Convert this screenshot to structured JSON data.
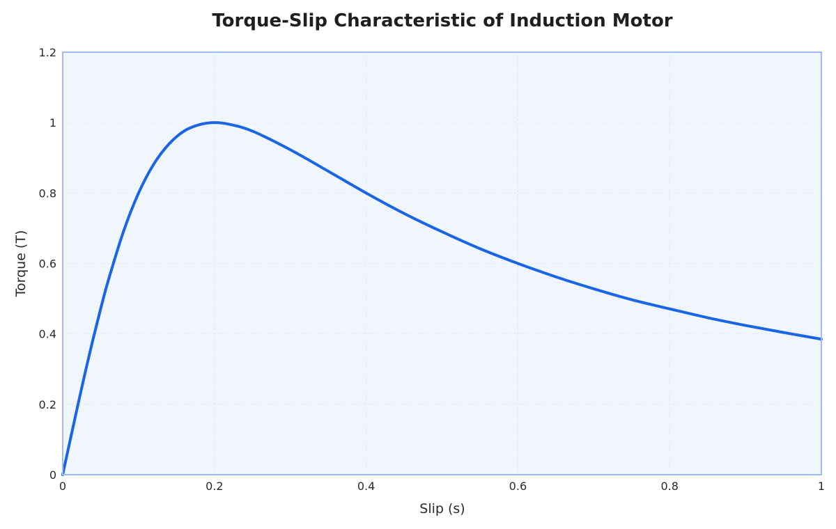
{
  "chart_data": {
    "type": "line",
    "title": "Torque-Slip Characteristic of Induction Motor",
    "xlabel": "Slip (s)",
    "ylabel": "Torque (T)",
    "xlim": [
      0,
      1
    ],
    "ylim": [
      0,
      1.2
    ],
    "xticks": [
      "0",
      "0.2",
      "0.4",
      "0.6",
      "0.8",
      "1"
    ],
    "yticks": [
      "0",
      "0.2",
      "0.4",
      "0.6",
      "0.8",
      "1",
      "1.2"
    ],
    "grid": true,
    "legend": "none",
    "colors": {
      "line": "#1a64e6",
      "plot_background": "#f1f6fd",
      "plot_border": "#9dbcf5",
      "grid": "#dfe8f5"
    },
    "series": [
      {
        "x": [
          0,
          0.01,
          0.02,
          0.03,
          0.04,
          0.05,
          0.06,
          0.08,
          0.1,
          0.12,
          0.14,
          0.16,
          0.18,
          0.2,
          0.22,
          0.25,
          0.3,
          0.35,
          0.4,
          0.45,
          0.5,
          0.55,
          0.6,
          0.65,
          0.7,
          0.75,
          0.8,
          0.85,
          0.9,
          0.95,
          1.0
        ],
        "values": [
          0,
          0.0998,
          0.198,
          0.294,
          0.385,
          0.471,
          0.551,
          0.69,
          0.8,
          0.882,
          0.939,
          0.976,
          0.994,
          1.0,
          0.995,
          0.976,
          0.923,
          0.862,
          0.8,
          0.742,
          0.69,
          0.642,
          0.6,
          0.562,
          0.528,
          0.497,
          0.471,
          0.446,
          0.424,
          0.404,
          0.385
        ]
      }
    ]
  }
}
